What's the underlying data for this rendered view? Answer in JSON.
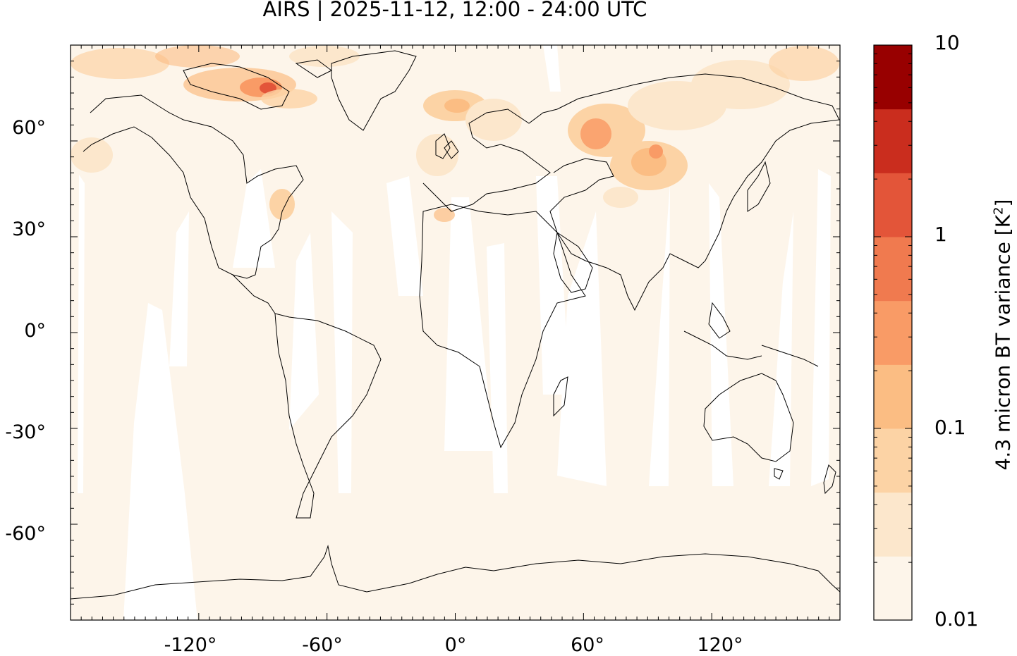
{
  "title": "AIRS | 2025-11-12, 12:00 - 24:00 UTC",
  "map": {
    "projection": "equirectangular",
    "lon_range": [
      -180,
      180
    ],
    "lat_range": [
      -90,
      90
    ],
    "background_color": "#fdf5ea",
    "lat_tick_labels": [
      "60°",
      "30°",
      "0°",
      "-30°",
      "-60°"
    ],
    "lon_tick_labels": [
      "-120°",
      "-60°",
      "0°",
      "60°",
      "120°"
    ],
    "coastlines": true,
    "colorbar": {
      "title": "4.3 micron BT variance [K",
      "title_superscript": "2",
      "title_suffix": "]",
      "scale": "log",
      "range": [
        0.01,
        10
      ],
      "tick_labels": [
        "10",
        "1",
        "0.1",
        "0.01"
      ],
      "colors": [
        "#fdf5ea",
        "#fce7cc",
        "#fcd3a5",
        "#fbbd83",
        "#f99b66",
        "#f07a4f",
        "#e35539",
        "#ca2d1e",
        "#980000"
      ]
    }
  }
}
